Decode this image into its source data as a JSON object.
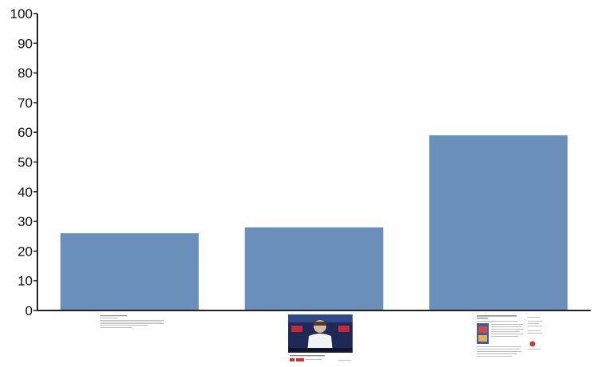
{
  "chart_data": {
    "type": "bar",
    "categories": [
      "",
      "",
      ""
    ],
    "category_images": [
      "text-document-thumbnail",
      "video-page-thumbnail",
      "article-page-thumbnail"
    ],
    "values": [
      26,
      28,
      59
    ],
    "ylim": [
      0,
      100
    ],
    "yticks": [
      0,
      10,
      20,
      30,
      40,
      50,
      60,
      70,
      80,
      90,
      100
    ],
    "grid": false,
    "legend": "none",
    "title": "",
    "xlabel": "",
    "ylabel": "",
    "colors": {
      "bar": "#6a8fbb",
      "axis": "#222222"
    }
  }
}
